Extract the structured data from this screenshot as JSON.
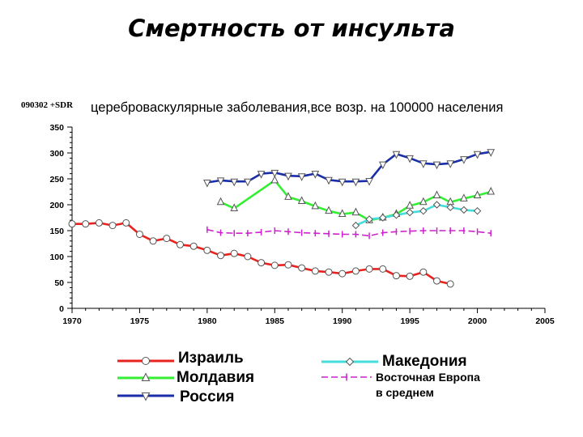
{
  "page": {
    "title": "Смертность от инсульта"
  },
  "chart_data": {
    "type": "line",
    "code_label": "090302 +SDR",
    "subtitle": "цереброваскулярные заболевания,все возр. на 100000 населения",
    "xlim": [
      1970,
      2005
    ],
    "ylim": [
      0,
      350
    ],
    "x_ticks": [
      "1970",
      "1975",
      "1980",
      "1985",
      "1990",
      "1995",
      "2000",
      "2005"
    ],
    "y_ticks": [
      "0",
      "50",
      "100",
      "150",
      "200",
      "250",
      "300",
      "350"
    ],
    "grid": false,
    "series": [
      {
        "name": "Израиль",
        "color": "#e8231f",
        "marker": "circle",
        "points": [
          [
            1970,
            163
          ],
          [
            1971,
            163
          ],
          [
            1972,
            165
          ],
          [
            1973,
            160
          ],
          [
            1974,
            165
          ],
          [
            1975,
            143
          ],
          [
            1976,
            130
          ],
          [
            1977,
            135
          ],
          [
            1978,
            123
          ],
          [
            1979,
            120
          ],
          [
            1980,
            112
          ],
          [
            1981,
            102
          ],
          [
            1982,
            106
          ],
          [
            1983,
            100
          ],
          [
            1984,
            88
          ],
          [
            1985,
            83
          ],
          [
            1986,
            84
          ],
          [
            1987,
            78
          ],
          [
            1988,
            72
          ],
          [
            1989,
            70
          ],
          [
            1990,
            67
          ],
          [
            1991,
            72
          ],
          [
            1992,
            76
          ],
          [
            1993,
            76
          ],
          [
            1994,
            63
          ],
          [
            1995,
            62
          ],
          [
            1996,
            70
          ],
          [
            1997,
            53
          ],
          [
            1998,
            47
          ]
        ]
      },
      {
        "name": "Молдавия",
        "color": "#33ee33",
        "marker": "triangle-up",
        "points": [
          [
            1981,
            205
          ],
          [
            1982,
            193
          ],
          [
            1985,
            247
          ],
          [
            1986,
            215
          ],
          [
            1987,
            207
          ],
          [
            1988,
            197
          ],
          [
            1989,
            188
          ],
          [
            1990,
            182
          ],
          [
            1991,
            185
          ],
          [
            1992,
            170
          ],
          [
            1993,
            175
          ],
          [
            1994,
            182
          ],
          [
            1995,
            198
          ],
          [
            1996,
            205
          ],
          [
            1997,
            218
          ],
          [
            1998,
            205
          ],
          [
            1999,
            212
          ],
          [
            2000,
            218
          ],
          [
            2001,
            225
          ]
        ]
      },
      {
        "name": "Россия",
        "color": "#1a2ea8",
        "marker": "triangle-down",
        "points": [
          [
            1980,
            243
          ],
          [
            1981,
            247
          ],
          [
            1982,
            245
          ],
          [
            1983,
            245
          ],
          [
            1984,
            260
          ],
          [
            1985,
            262
          ],
          [
            1986,
            256
          ],
          [
            1987,
            255
          ],
          [
            1988,
            260
          ],
          [
            1989,
            248
          ],
          [
            1990,
            245
          ],
          [
            1991,
            245
          ],
          [
            1992,
            246
          ],
          [
            1993,
            278
          ],
          [
            1994,
            298
          ],
          [
            1995,
            290
          ],
          [
            1996,
            280
          ],
          [
            1997,
            278
          ],
          [
            1998,
            280
          ],
          [
            1999,
            288
          ],
          [
            2000,
            298
          ],
          [
            2001,
            302
          ]
        ]
      },
      {
        "name": "Македония",
        "color": "#44dddd",
        "marker": "diamond",
        "points": [
          [
            1991,
            160
          ],
          [
            1992,
            172
          ],
          [
            1993,
            175
          ],
          [
            1994,
            180
          ],
          [
            1995,
            185
          ],
          [
            1996,
            188
          ],
          [
            1997,
            200
          ],
          [
            1998,
            195
          ],
          [
            1999,
            190
          ],
          [
            2000,
            188
          ]
        ]
      },
      {
        "name": "Восточная Европа в среднем",
        "color": "#cc22cc",
        "marker": "bar",
        "points": [
          [
            1980,
            152
          ],
          [
            1981,
            146
          ],
          [
            1982,
            145
          ],
          [
            1983,
            145
          ],
          [
            1984,
            147
          ],
          [
            1985,
            150
          ],
          [
            1986,
            148
          ],
          [
            1987,
            146
          ],
          [
            1988,
            145
          ],
          [
            1989,
            144
          ],
          [
            1990,
            143
          ],
          [
            1991,
            143
          ],
          [
            1992,
            140
          ],
          [
            1993,
            146
          ],
          [
            1994,
            148
          ],
          [
            1995,
            149
          ],
          [
            1996,
            150
          ],
          [
            1997,
            150
          ],
          [
            1998,
            150
          ],
          [
            1999,
            150
          ],
          [
            2000,
            148
          ],
          [
            2001,
            145
          ]
        ]
      }
    ]
  },
  "legend": {
    "israel": "Израиль",
    "moldova": "Молдавия",
    "russia": "Россия",
    "macedonia": "Македония",
    "east_europe_1": "Восточная Европа",
    "east_europe_2": "в среднем"
  }
}
